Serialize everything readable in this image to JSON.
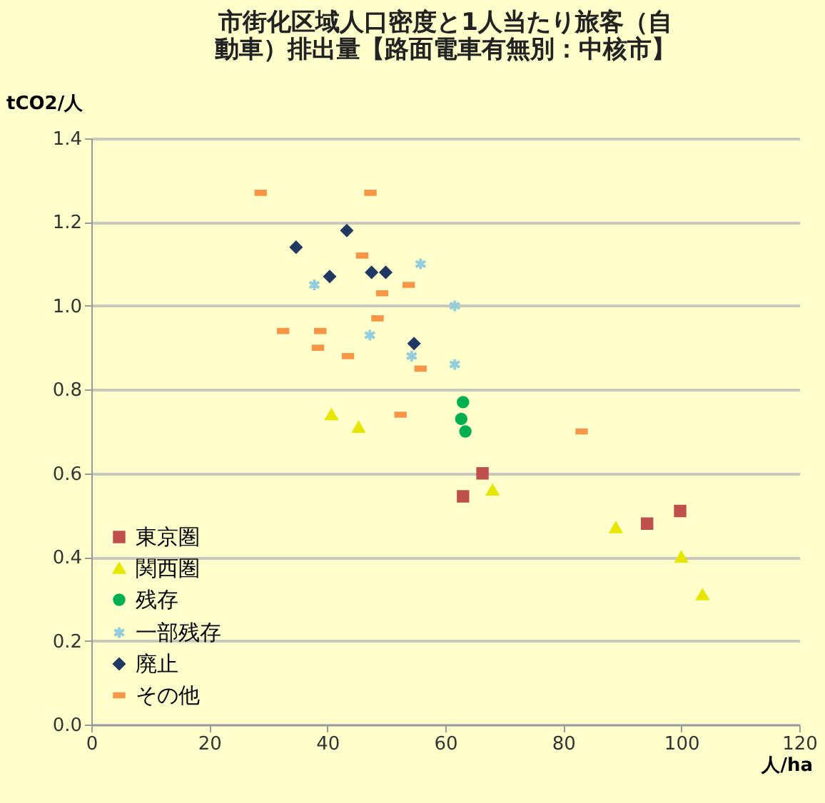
{
  "chart_data": {
    "type": "scatter",
    "title": "市街化区域人口密度と1人当たり旅客（自動車）排出量【路面電車有無別：中核市】",
    "xlabel": "人/ha",
    "ylabel": "tCO2/人",
    "xlim": [
      0,
      120
    ],
    "xticks": [
      0,
      20,
      40,
      60,
      80,
      100,
      120
    ],
    "ylim": [
      0,
      1.4
    ],
    "yticks": [
      {
        "value": 0,
        "label": "0.0"
      },
      0.2,
      0.4,
      0.6,
      0.8,
      {
        "value": 1,
        "label": "1.0"
      },
      1.2,
      1.4
    ],
    "grid": "y",
    "legend": "bottom left",
    "series": [
      {
        "name": "東京圏",
        "color": "#c0504d",
        "marker": "square",
        "x": [
          63,
          66.3,
          94.2,
          99.8
        ],
        "values": [
          0.545,
          0.6,
          0.48,
          0.51
        ]
      },
      {
        "name": "関西圏",
        "color": "#e6e600",
        "marker": "triangle",
        "x": [
          40.7,
          45.3,
          68,
          88.9,
          100,
          103.6
        ],
        "values": [
          0.74,
          0.71,
          0.56,
          0.47,
          0.4,
          0.31
        ]
      },
      {
        "name": "残存",
        "color": "#00b050",
        "marker": "circle",
        "x": [
          63,
          62.7,
          63.4
        ],
        "values": [
          0.77,
          0.73,
          0.7
        ]
      },
      {
        "name": "一部残存",
        "color": "#93cddd",
        "marker": "cross",
        "x": [
          37.8,
          55.8,
          61.6,
          47.2,
          54.3,
          61.6
        ],
        "values": [
          1.05,
          1.1,
          1.0,
          0.93,
          0.88,
          0.86
        ]
      },
      {
        "name": "廃止",
        "color": "#1f3864",
        "marker": "diamond",
        "x": [
          34.7,
          43.3,
          40.4,
          47.5,
          49.9,
          54.7
        ],
        "values": [
          1.14,
          1.18,
          1.07,
          1.08,
          1.08,
          0.91
        ]
      },
      {
        "name": "その他",
        "color": "#f79646",
        "x": [
          28.7,
          47.3,
          45.9,
          53.8,
          49.3,
          48.5,
          32.5,
          38.8,
          38.4,
          43.5,
          55.8,
          52.4,
          83.1
        ],
        "values": [
          1.27,
          1.27,
          1.12,
          1.05,
          1.03,
          0.97,
          0.94,
          0.94,
          0.9,
          0.88,
          0.85,
          0.74,
          0.7
        ]
      }
    ]
  }
}
